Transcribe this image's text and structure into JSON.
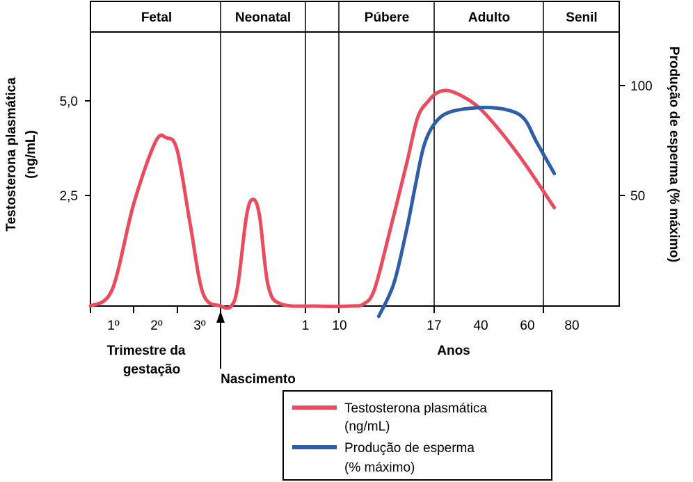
{
  "chart_data": {
    "type": "line",
    "phases": [
      "Fetal",
      "Neonatal",
      "",
      "Púbere",
      "Adulto",
      "Senil"
    ],
    "x_tick_labels": [
      "1º",
      "2º",
      "3º",
      "1",
      "10",
      "17",
      "40",
      "60",
      "80"
    ],
    "x_group_labels": {
      "trimester": [
        "Trimestre da",
        "gestação"
      ],
      "years": "Anos",
      "birth": "Nascimento"
    },
    "y_left": {
      "label": [
        "Testosterona plasmática",
        "(ng/mL)"
      ],
      "ticks": [
        2.5,
        5.0
      ],
      "tick_labels": [
        "2,5",
        "5,0"
      ],
      "range": [
        0,
        7.5
      ]
    },
    "y_right": {
      "label": "Produção de esperma (% máximo)",
      "ticks": [
        50,
        100
      ],
      "tick_labels": [
        "50",
        "100"
      ],
      "range": [
        -5,
        100
      ]
    },
    "series": [
      {
        "name": "Testosterona plasmática (ng/mL)",
        "axis": "left",
        "color": "#e84c5e",
        "points": [
          [
            0,
            0
          ],
          [
            0.5,
            0.4
          ],
          [
            1.0,
            2.5
          ],
          [
            1.5,
            4.0
          ],
          [
            1.75,
            4.1
          ],
          [
            2.0,
            3.8
          ],
          [
            2.3,
            2.0
          ],
          [
            2.6,
            0.3
          ],
          [
            3.0,
            0
          ],
          [
            3.25,
            0
          ],
          [
            3.4,
            0.5
          ],
          [
            3.6,
            2.2
          ],
          [
            3.75,
            2.6
          ],
          [
            3.9,
            2.2
          ],
          [
            4.1,
            0.5
          ],
          [
            4.4,
            0.05
          ],
          [
            5.2,
            0
          ],
          [
            6.0,
            0
          ],
          [
            6.3,
            0.05
          ],
          [
            6.55,
            0.4
          ],
          [
            6.9,
            1.8
          ],
          [
            7.3,
            3.5
          ],
          [
            7.55,
            4.6
          ],
          [
            7.8,
            5.0
          ],
          [
            8.0,
            5.2
          ],
          [
            8.25,
            5.25
          ],
          [
            8.6,
            5.1
          ],
          [
            9.0,
            4.8
          ],
          [
            9.5,
            4.2
          ],
          [
            10.0,
            3.5
          ],
          [
            10.7,
            2.4
          ]
        ]
      },
      {
        "name": "Produção de esperma (% máximo)",
        "axis": "right",
        "color": "#2f5da8",
        "points": [
          [
            6.65,
            -5
          ],
          [
            7.0,
            10
          ],
          [
            7.3,
            35
          ],
          [
            7.5,
            55
          ],
          [
            7.7,
            73
          ],
          [
            7.95,
            83
          ],
          [
            8.3,
            88
          ],
          [
            9.0,
            90
          ],
          [
            9.6,
            89
          ],
          [
            10.0,
            85
          ],
          [
            10.3,
            74
          ],
          [
            10.7,
            60
          ]
        ]
      }
    ],
    "legend": {
      "position": "bottom-right",
      "entries": [
        {
          "line1": "Testosterona plasmática",
          "line2": "(ng/mL)",
          "color": "#e84c5e"
        },
        {
          "line1": "Produção de esperma",
          "line2": "(% máximo)",
          "color": "#2f5da8"
        }
      ]
    },
    "grid": false
  }
}
